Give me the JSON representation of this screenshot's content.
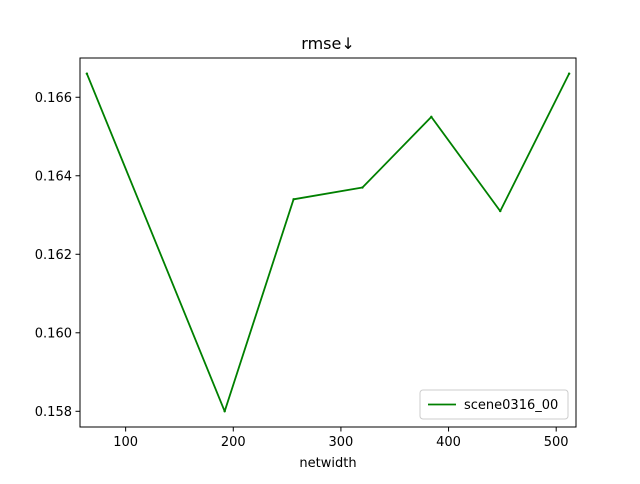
{
  "chart_data": {
    "type": "line",
    "title": "rmse↓",
    "xlabel": "netwidth",
    "ylabel": "",
    "xlim": [
      57.6,
      518.4
    ],
    "ylim": [
      0.1576,
      0.167
    ],
    "xticks": [
      100,
      200,
      300,
      400,
      500
    ],
    "yticks": [
      0.158,
      0.16,
      0.162,
      0.164,
      0.166
    ],
    "xtick_labels": [
      "100",
      "200",
      "300",
      "400",
      "500"
    ],
    "ytick_labels": [
      "0.158",
      "0.160",
      "0.162",
      "0.164",
      "0.166"
    ],
    "grid": false,
    "legend_position": "lower right",
    "series": [
      {
        "name": "scene0316_00",
        "color": "#008000",
        "x": [
          64,
          192,
          256,
          320,
          384,
          448,
          512
        ],
        "y": [
          0.1666,
          0.158,
          0.1634,
          0.1637,
          0.1655,
          0.1631,
          0.1666
        ]
      }
    ]
  }
}
